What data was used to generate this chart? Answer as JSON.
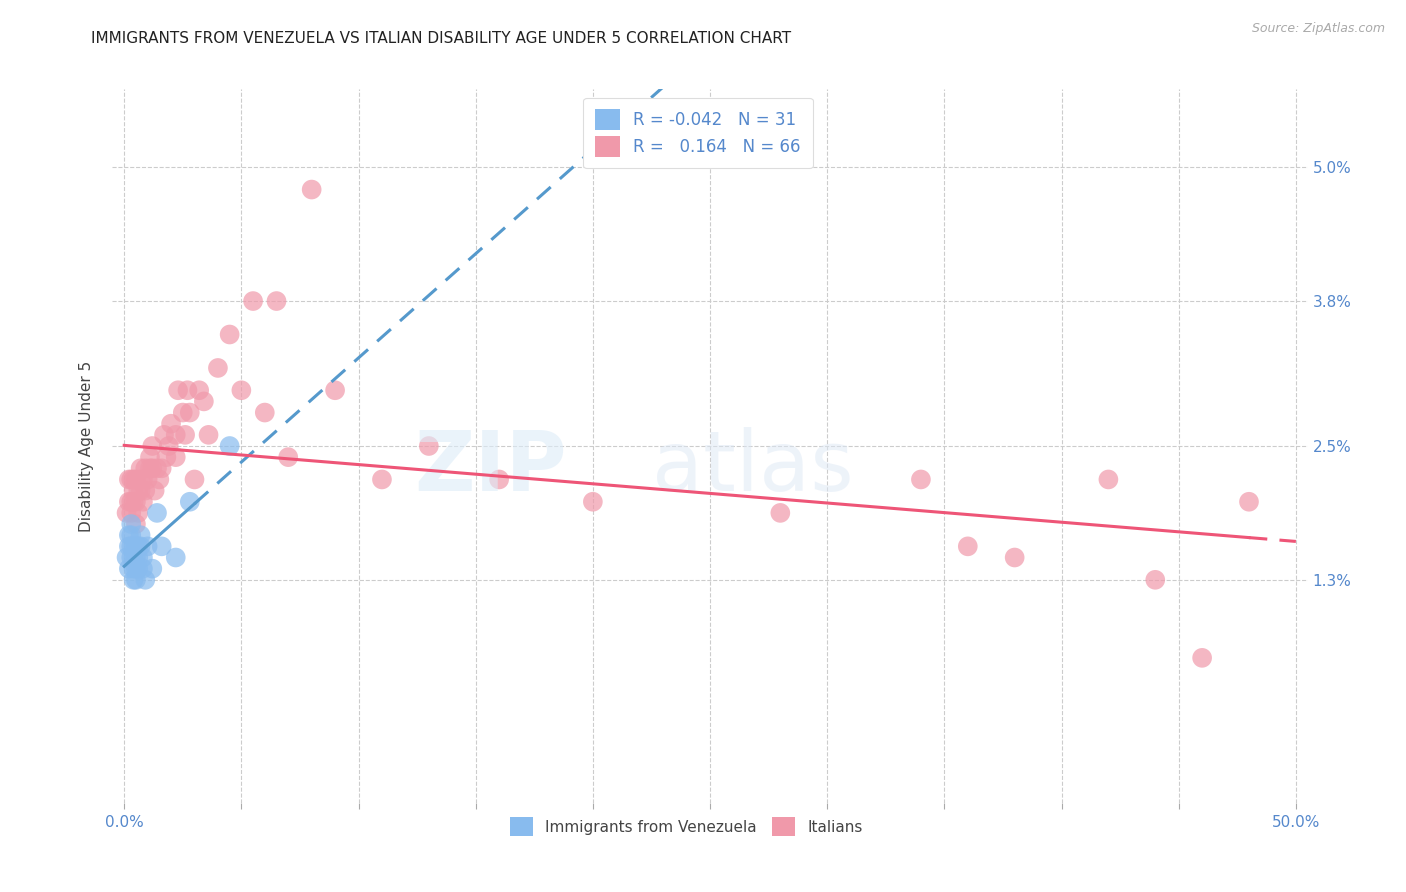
{
  "title": "IMMIGRANTS FROM VENEZUELA VS ITALIAN DISABILITY AGE UNDER 5 CORRELATION CHART",
  "source": "Source: ZipAtlas.com",
  "ylabel": "Disability Age Under 5",
  "x_tick_labels_edge": [
    "0.0%",
    "50.0%"
  ],
  "x_tick_positions_edge": [
    0.0,
    0.5
  ],
  "x_minor_ticks": [
    0.05,
    0.1,
    0.15,
    0.2,
    0.25,
    0.3,
    0.35,
    0.4,
    0.45
  ],
  "y_tick_labels": [
    "1.3%",
    "2.5%",
    "3.8%",
    "5.0%"
  ],
  "y_tick_values": [
    0.013,
    0.025,
    0.038,
    0.05
  ],
  "xlim": [
    -0.005,
    0.505
  ],
  "ylim": [
    -0.007,
    0.057
  ],
  "legend_label1": "Immigrants from Venezuela",
  "legend_label2": "Italians",
  "background_color": "#ffffff",
  "grid_color": "#cccccc",
  "scatter_color_venezuela": "#88bbee",
  "scatter_color_italians": "#f099aa",
  "line_color_venezuela": "#5599cc",
  "line_color_italians": "#ee5577",
  "title_fontsize": 11,
  "venezuela_x": [
    0.001,
    0.002,
    0.002,
    0.002,
    0.003,
    0.003,
    0.003,
    0.003,
    0.004,
    0.004,
    0.004,
    0.004,
    0.005,
    0.005,
    0.005,
    0.005,
    0.006,
    0.006,
    0.006,
    0.007,
    0.007,
    0.008,
    0.008,
    0.009,
    0.01,
    0.012,
    0.014,
    0.016,
    0.022,
    0.028,
    0.045
  ],
  "venezuela_y": [
    0.015,
    0.017,
    0.016,
    0.014,
    0.018,
    0.017,
    0.016,
    0.015,
    0.016,
    0.015,
    0.014,
    0.013,
    0.016,
    0.015,
    0.014,
    0.013,
    0.016,
    0.015,
    0.014,
    0.017,
    0.016,
    0.015,
    0.014,
    0.013,
    0.016,
    0.014,
    0.019,
    0.016,
    0.015,
    0.02,
    0.025
  ],
  "italians_x": [
    0.001,
    0.002,
    0.002,
    0.003,
    0.003,
    0.003,
    0.004,
    0.004,
    0.004,
    0.005,
    0.005,
    0.005,
    0.006,
    0.006,
    0.007,
    0.007,
    0.007,
    0.008,
    0.008,
    0.009,
    0.009,
    0.01,
    0.011,
    0.011,
    0.012,
    0.012,
    0.013,
    0.014,
    0.015,
    0.016,
    0.017,
    0.018,
    0.019,
    0.02,
    0.022,
    0.022,
    0.023,
    0.025,
    0.026,
    0.027,
    0.028,
    0.03,
    0.032,
    0.034,
    0.036,
    0.04,
    0.045,
    0.05,
    0.055,
    0.06,
    0.065,
    0.07,
    0.08,
    0.09,
    0.11,
    0.13,
    0.16,
    0.2,
    0.28,
    0.34,
    0.36,
    0.38,
    0.42,
    0.44,
    0.46,
    0.48
  ],
  "italians_y": [
    0.019,
    0.022,
    0.02,
    0.019,
    0.02,
    0.022,
    0.02,
    0.022,
    0.021,
    0.018,
    0.02,
    0.022,
    0.021,
    0.019,
    0.021,
    0.023,
    0.022,
    0.02,
    0.022,
    0.023,
    0.021,
    0.022,
    0.024,
    0.023,
    0.025,
    0.023,
    0.021,
    0.023,
    0.022,
    0.023,
    0.026,
    0.024,
    0.025,
    0.027,
    0.024,
    0.026,
    0.03,
    0.028,
    0.026,
    0.03,
    0.028,
    0.022,
    0.03,
    0.029,
    0.026,
    0.032,
    0.035,
    0.03,
    0.038,
    0.028,
    0.038,
    0.024,
    0.048,
    0.03,
    0.022,
    0.025,
    0.022,
    0.02,
    0.019,
    0.022,
    0.016,
    0.015,
    0.022,
    0.013,
    0.006,
    0.02
  ]
}
